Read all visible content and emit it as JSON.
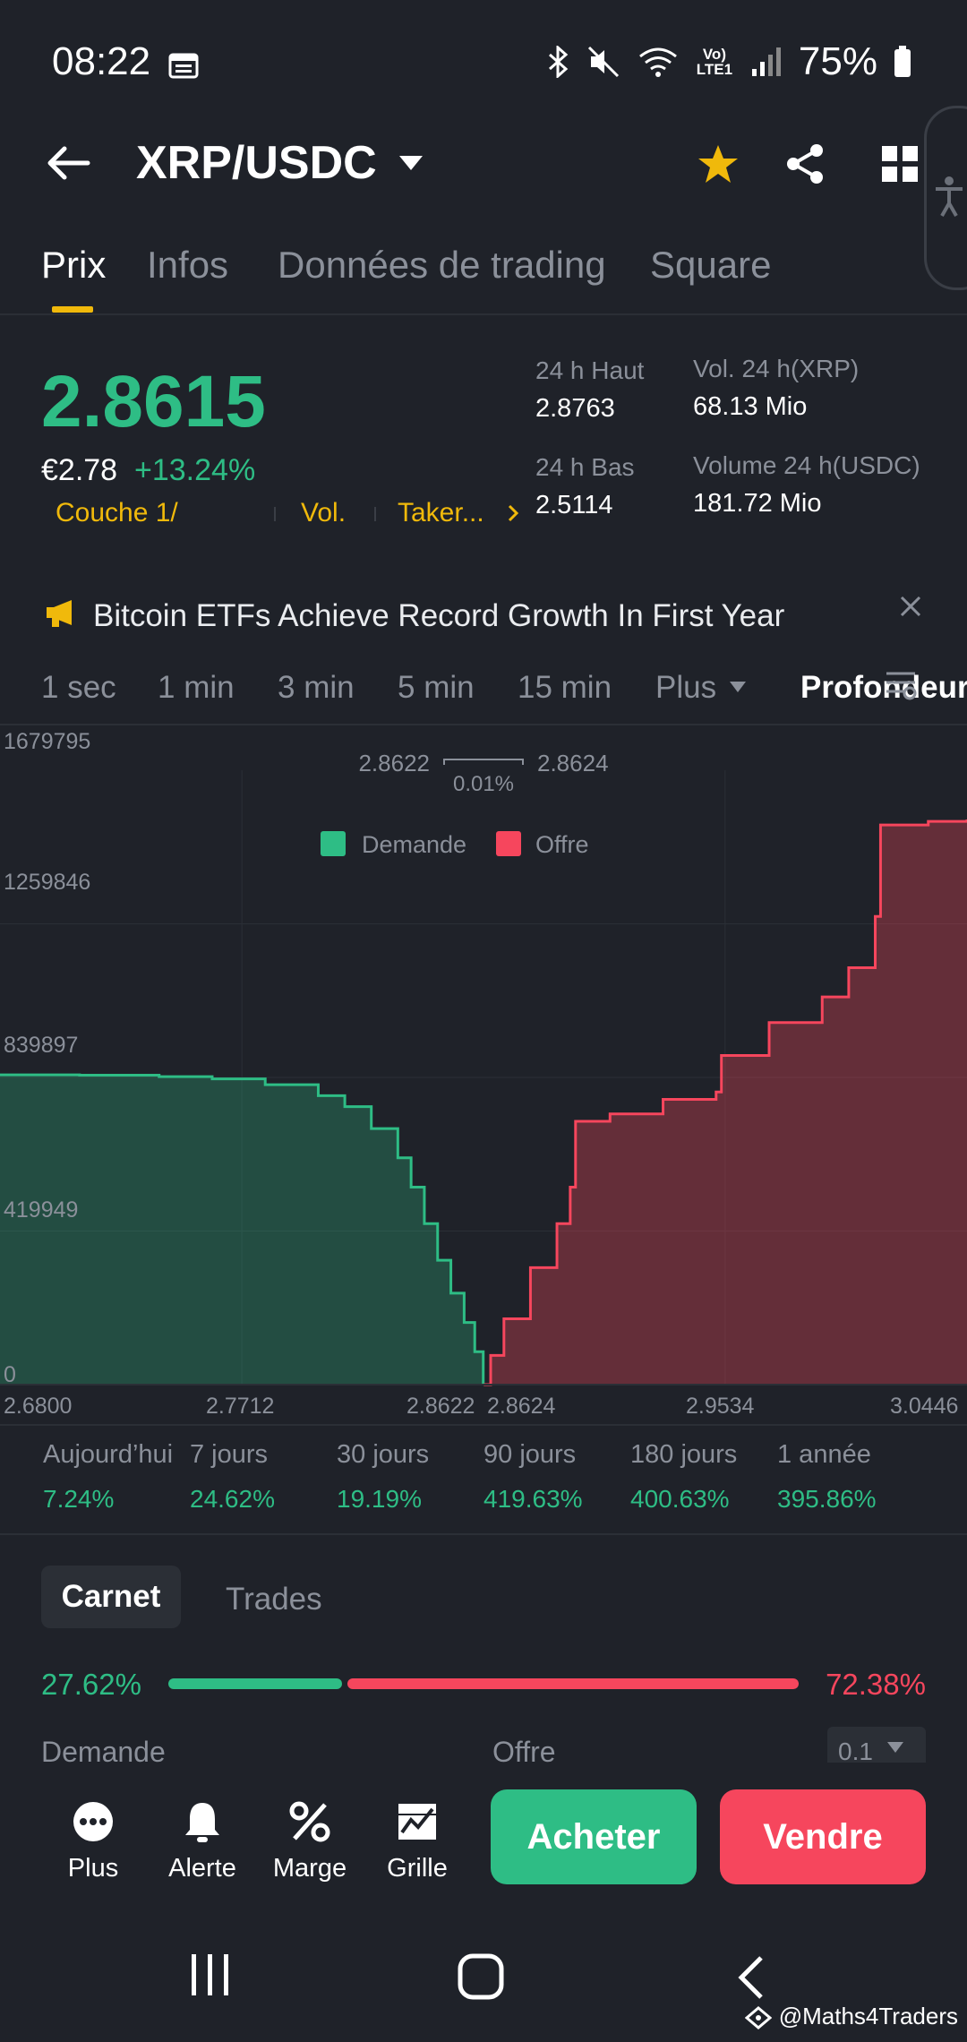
{
  "status_bar": {
    "time": "08:22",
    "battery": "75%",
    "network_label": "Vo) LTE1"
  },
  "header": {
    "pair": "XRP/USDC"
  },
  "tabs": [
    "Prix",
    "Infos",
    "Données de trading",
    "Square"
  ],
  "price_panel": {
    "last_price": "2.8615",
    "fiat_price": "€2.78",
    "change_pct": "+13.24%",
    "tags": [
      "Couche 1/",
      "Vol.",
      "Taker..."
    ],
    "high_label": "24 h Haut",
    "high_value": "2.8763",
    "low_label": "24 h Bas",
    "low_value": "2.5114",
    "vol_base_label": "Vol. 24 h(XRP)",
    "vol_base_value": "68.13 Mio",
    "vol_quote_label": "Volume 24 h(USDC)",
    "vol_quote_value": "181.72 Mio"
  },
  "news": {
    "headline": "Bitcoin ETFs Achieve Record Growth In First Year"
  },
  "timeframes": [
    "1 sec",
    "1 min",
    "3 min",
    "5 min",
    "15 min",
    "Plus",
    "Profondeur"
  ],
  "chart_data": {
    "type": "area",
    "title": "",
    "best_bid": "2.8622",
    "best_ask": "2.8624",
    "spread_pct": "0.01%",
    "legend": [
      "Demande",
      "Offre"
    ],
    "y_ticks": [
      "1679795",
      "1259846",
      "839897",
      "419949",
      "0"
    ],
    "x_ticks": [
      "2.6800",
      "2.7712",
      "2.8622",
      "2.8624",
      "2.9534",
      "3.0446"
    ],
    "xlim": [
      2.68,
      3.0446
    ],
    "ylim": [
      0,
      1679795
    ],
    "series": [
      {
        "name": "Demande",
        "color": "#2ebd85",
        "points": [
          [
            2.68,
            847000
          ],
          [
            2.71,
            846000
          ],
          [
            2.74,
            842000
          ],
          [
            2.76,
            836000
          ],
          [
            2.78,
            820000
          ],
          [
            2.8,
            790000
          ],
          [
            2.81,
            760000
          ],
          [
            2.82,
            700000
          ],
          [
            2.83,
            620000
          ],
          [
            2.835,
            540000
          ],
          [
            2.84,
            440000
          ],
          [
            2.845,
            340000
          ],
          [
            2.85,
            250000
          ],
          [
            2.855,
            170000
          ],
          [
            2.859,
            90000
          ],
          [
            2.8622,
            0
          ]
        ]
      },
      {
        "name": "Offre",
        "color": "#f6465d",
        "points": [
          [
            2.8624,
            0
          ],
          [
            2.865,
            80000
          ],
          [
            2.87,
            180000
          ],
          [
            2.88,
            320000
          ],
          [
            2.89,
            440000
          ],
          [
            2.895,
            540000
          ],
          [
            2.897,
            720000
          ],
          [
            2.91,
            740000
          ],
          [
            2.93,
            780000
          ],
          [
            2.95,
            800000
          ],
          [
            2.952,
            900000
          ],
          [
            2.97,
            990000
          ],
          [
            2.99,
            1060000
          ],
          [
            3.0,
            1140000
          ],
          [
            3.01,
            1280000
          ],
          [
            3.012,
            1530000
          ],
          [
            3.03,
            1540000
          ],
          [
            3.0446,
            1545000
          ]
        ]
      }
    ]
  },
  "performance": [
    {
      "label": "Aujourd’hui",
      "value": "7.24%"
    },
    {
      "label": "7 jours",
      "value": "24.62%"
    },
    {
      "label": "30 jours",
      "value": "19.19%"
    },
    {
      "label": "90 jours",
      "value": "419.63%"
    },
    {
      "label": "180 jours",
      "value": "400.63%"
    },
    {
      "label": "1 année",
      "value": "395.86%"
    }
  ],
  "order_book": {
    "tabs": [
      "Carnet",
      "Trades"
    ],
    "bid_ratio": "27.62%",
    "ask_ratio": "72.38%",
    "bid_fraction": 0.2762,
    "bid_label": "Demande",
    "ask_label": "Offre",
    "precision": "0.1"
  },
  "actions": [
    {
      "label": "Plus",
      "icon": "more-icon"
    },
    {
      "label": "Alerte",
      "icon": "bell-icon"
    },
    {
      "label": "Marge",
      "icon": "percent-icon"
    },
    {
      "label": "Grille",
      "icon": "grid-bot-icon"
    }
  ],
  "buy_label": "Acheter",
  "sell_label": "Vendre",
  "watermark": "@Maths4Traders",
  "colors": {
    "green": "#2ebd85",
    "red": "#f6465d",
    "accent": "#f0b90b",
    "background": "#1f2229"
  }
}
